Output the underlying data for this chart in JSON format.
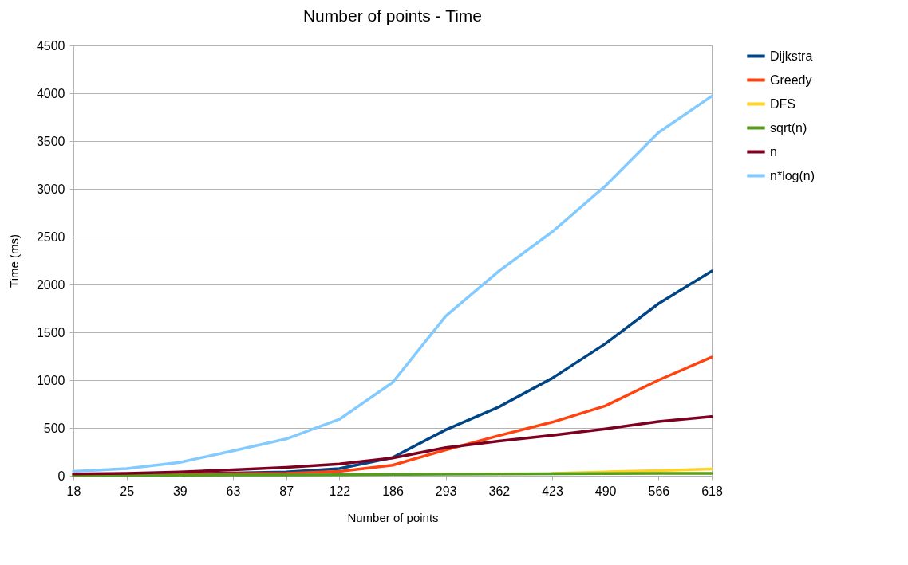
{
  "chart_data": {
    "type": "line",
    "title": "Number of points - Time",
    "xlabel": "Number of points",
    "ylabel": "Time (ms)",
    "categories": [
      "18",
      "25",
      "39",
      "63",
      "87",
      "122",
      "186",
      "293",
      "362",
      "423",
      "490",
      "566",
      "618"
    ],
    "series": [
      {
        "name": "Dijkstra",
        "color": "#004586",
        "values": [
          null,
          null,
          20,
          30,
          40,
          75,
          190,
          480,
          720,
          1020,
          1380,
          1800,
          2140
        ]
      },
      {
        "name": "Greedy",
        "color": "#ff420e",
        "values": [
          5,
          8,
          15,
          20,
          25,
          45,
          110,
          270,
          420,
          560,
          730,
          1000,
          1240
        ]
      },
      {
        "name": "DFS",
        "color": "#ffd320",
        "values": [
          null,
          null,
          null,
          null,
          null,
          null,
          null,
          null,
          null,
          25,
          40,
          55,
          70
        ]
      },
      {
        "name": "sqrt(n)",
        "color": "#579d1c",
        "values": [
          4,
          5,
          6,
          8,
          9,
          11,
          14,
          17,
          19,
          21,
          22,
          24,
          25
        ]
      },
      {
        "name": "n",
        "color": "#7e0021",
        "values": [
          18,
          25,
          39,
          63,
          87,
          122,
          186,
          293,
          362,
          423,
          490,
          566,
          618
        ]
      },
      {
        "name": "n*log(n)",
        "color": "#83caff",
        "values": [
          45,
          75,
          140,
          260,
          385,
          590,
          975,
          1670,
          2140,
          2550,
          3030,
          3590,
          3970
        ]
      }
    ],
    "ylim": [
      0,
      4500
    ],
    "yticks": [
      0,
      500,
      1000,
      1500,
      2000,
      2500,
      3000,
      3500,
      4000,
      4500
    ],
    "grid": "y",
    "legend": "right",
    "marker": "none",
    "line_style": "solid"
  }
}
